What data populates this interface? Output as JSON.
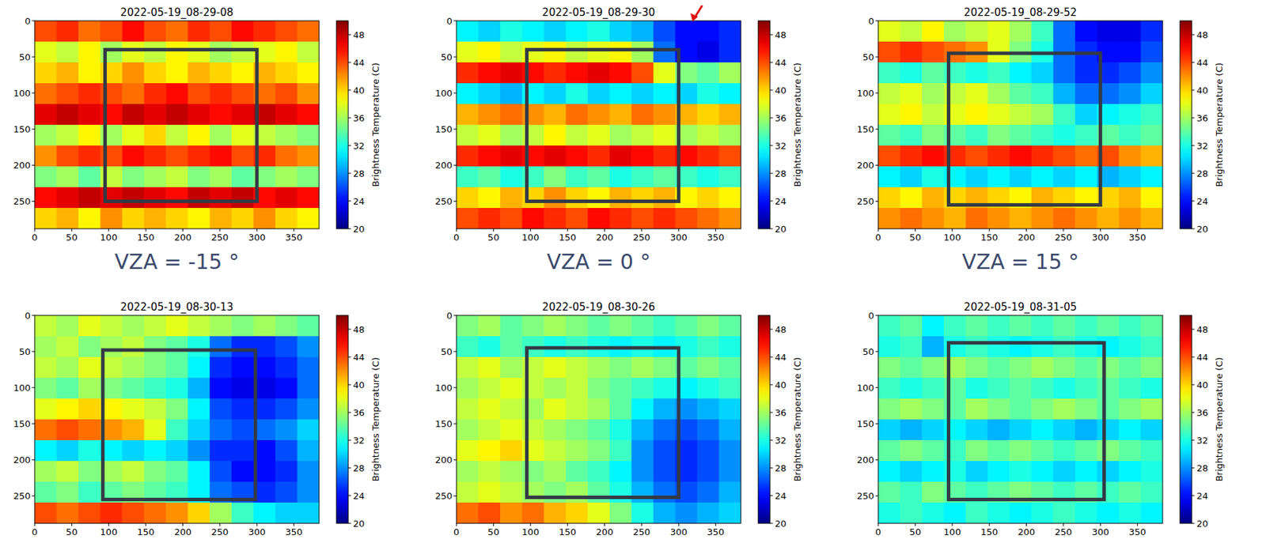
{
  "chart_data": [
    {
      "type": "heatmap",
      "title": "2022-05-19_08-29-08",
      "annotation": "VZA = -15 °",
      "xlim": [
        0,
        384
      ],
      "ylim": [
        288,
        0
      ],
      "xticks": [
        0,
        50,
        100,
        150,
        200,
        250,
        300,
        350
      ],
      "yticks": [
        0,
        50,
        100,
        150,
        200,
        250
      ],
      "roi": {
        "x": [
          95,
          300
        ],
        "y": [
          40,
          250
        ]
      },
      "colorbar": {
        "label": "Brightness Temperature (C)",
        "range": [
          20,
          50
        ],
        "ticks": [
          20,
          24,
          28,
          32,
          36,
          40,
          44,
          48
        ]
      },
      "cells": [
        [
          44,
          45,
          43,
          44,
          46,
          44,
          43,
          45,
          44,
          46,
          45,
          44,
          43
        ],
        [
          38,
          37,
          39,
          36,
          38,
          37,
          39,
          38,
          36,
          37,
          38,
          39,
          37
        ],
        [
          40,
          41,
          39,
          40,
          42,
          40,
          39,
          41,
          40,
          39,
          41,
          40,
          39
        ],
        [
          43,
          44,
          45,
          44,
          43,
          45,
          46,
          44,
          45,
          44,
          43,
          44,
          42
        ],
        [
          47,
          48,
          47,
          46,
          48,
          47,
          48,
          47,
          46,
          47,
          48,
          47,
          46
        ],
        [
          36,
          37,
          39,
          36,
          38,
          40,
          37,
          39,
          36,
          38,
          37,
          36,
          35
        ],
        [
          42,
          44,
          45,
          44,
          46,
          45,
          44,
          45,
          46,
          44,
          45,
          43,
          42
        ],
        [
          35,
          36,
          34,
          37,
          35,
          36,
          37,
          35,
          36,
          34,
          35,
          36,
          35
        ],
        [
          46,
          47,
          48,
          47,
          48,
          47,
          46,
          48,
          47,
          48,
          46,
          47,
          46
        ],
        [
          40,
          41,
          39,
          42,
          40,
          41,
          40,
          39,
          41,
          40,
          42,
          40,
          39
        ]
      ]
    },
    {
      "type": "heatmap",
      "title": "2022-05-19_08-29-30",
      "annotation": "VZA = 0 °",
      "xlim": [
        0,
        384
      ],
      "ylim": [
        288,
        0
      ],
      "xticks": [
        0,
        50,
        100,
        150,
        200,
        250,
        300,
        350
      ],
      "yticks": [
        0,
        50,
        100,
        150,
        200,
        250
      ],
      "roi": {
        "x": [
          95,
          300
        ],
        "y": [
          40,
          250
        ]
      },
      "colorbar": {
        "label": "Brightness Temperature (C)",
        "range": [
          20,
          50
        ],
        "ticks": [
          20,
          24,
          28,
          32,
          36,
          40,
          44,
          48
        ]
      },
      "cells": [
        [
          31,
          30,
          32,
          31,
          30,
          31,
          32,
          30,
          29,
          26,
          24,
          24,
          25
        ],
        [
          38,
          39,
          37,
          38,
          39,
          37,
          38,
          39,
          36,
          27,
          24,
          23,
          25
        ],
        [
          45,
          46,
          47,
          46,
          45,
          46,
          47,
          46,
          44,
          38,
          35,
          34,
          36
        ],
        [
          31,
          30,
          29,
          31,
          30,
          32,
          30,
          31,
          30,
          31,
          30,
          32,
          31
        ],
        [
          41,
          42,
          43,
          42,
          41,
          43,
          42,
          41,
          43,
          42,
          41,
          40,
          41
        ],
        [
          37,
          38,
          36,
          37,
          39,
          37,
          38,
          36,
          37,
          38,
          36,
          37,
          36
        ],
        [
          45,
          46,
          47,
          46,
          47,
          46,
          45,
          47,
          46,
          45,
          46,
          45,
          44
        ],
        [
          33,
          34,
          32,
          33,
          35,
          33,
          34,
          32,
          33,
          34,
          33,
          32,
          33
        ],
        [
          40,
          39,
          41,
          40,
          42,
          40,
          39,
          41,
          40,
          41,
          39,
          40,
          39
        ],
        [
          44,
          45,
          44,
          46,
          45,
          44,
          46,
          45,
          44,
          45,
          44,
          43,
          42
        ]
      ]
    },
    {
      "type": "heatmap",
      "title": "2022-05-19_08-29-52",
      "annotation": "VZA = 15 °",
      "xlim": [
        0,
        384
      ],
      "ylim": [
        288,
        0
      ],
      "xticks": [
        0,
        50,
        100,
        150,
        200,
        250,
        300,
        350
      ],
      "yticks": [
        0,
        50,
        100,
        150,
        200,
        250
      ],
      "roi": {
        "x": [
          95,
          300
        ],
        "y": [
          45,
          255
        ]
      },
      "colorbar": {
        "label": "Brightness Temperature (C)",
        "range": [
          20,
          50
        ],
        "ticks": [
          20,
          24,
          28,
          32,
          36,
          40,
          44,
          48
        ]
      },
      "cells": [
        [
          38,
          37,
          39,
          36,
          37,
          38,
          36,
          33,
          27,
          24,
          23,
          23,
          25
        ],
        [
          44,
          45,
          44,
          43,
          42,
          38,
          35,
          32,
          27,
          25,
          24,
          24,
          26
        ],
        [
          33,
          32,
          34,
          33,
          32,
          33,
          31,
          30,
          27,
          25,
          25,
          26,
          28
        ],
        [
          37,
          38,
          36,
          37,
          38,
          36,
          34,
          33,
          29,
          27,
          27,
          28,
          30
        ],
        [
          38,
          39,
          37,
          38,
          39,
          38,
          37,
          36,
          33,
          30,
          31,
          32,
          33
        ],
        [
          34,
          33,
          35,
          34,
          33,
          35,
          34,
          33,
          32,
          33,
          34,
          33,
          34
        ],
        [
          44,
          45,
          46,
          45,
          44,
          45,
          46,
          45,
          44,
          43,
          44,
          42,
          41
        ],
        [
          31,
          30,
          32,
          31,
          30,
          31,
          30,
          31,
          30,
          31,
          29,
          30,
          31
        ],
        [
          40,
          39,
          41,
          40,
          41,
          40,
          39,
          41,
          40,
          39,
          40,
          41,
          39
        ],
        [
          42,
          43,
          42,
          41,
          43,
          42,
          41,
          42,
          43,
          42,
          41,
          42,
          41
        ]
      ]
    },
    {
      "type": "heatmap",
      "title": "2022-05-19_08-30-13",
      "xlim": [
        0,
        384
      ],
      "ylim": [
        288,
        0
      ],
      "xticks": [
        0,
        50,
        100,
        150,
        200,
        250,
        300,
        350
      ],
      "yticks": [
        0,
        50,
        100,
        150,
        200,
        250
      ],
      "roi": {
        "x": [
          92,
          298
        ],
        "y": [
          48,
          255
        ]
      },
      "colorbar": {
        "label": "Brightness Temperature (C)",
        "range": [
          20,
          50
        ],
        "ticks": [
          20,
          24,
          28,
          32,
          36,
          40,
          44,
          48
        ]
      },
      "cells": [
        [
          37,
          36,
          38,
          37,
          36,
          37,
          38,
          37,
          36,
          35,
          36,
          35,
          34
        ],
        [
          36,
          37,
          35,
          36,
          37,
          35,
          34,
          32,
          27,
          25,
          25,
          26,
          28
        ],
        [
          37,
          36,
          38,
          37,
          36,
          35,
          34,
          31,
          25,
          24,
          24,
          25,
          27
        ],
        [
          35,
          34,
          36,
          35,
          34,
          33,
          32,
          29,
          24,
          23,
          23,
          24,
          27
        ],
        [
          38,
          39,
          40,
          39,
          38,
          37,
          35,
          31,
          26,
          25,
          25,
          26,
          28
        ],
        [
          43,
          44,
          43,
          42,
          41,
          38,
          33,
          30,
          27,
          26,
          27,
          28,
          30
        ],
        [
          31,
          30,
          32,
          31,
          30,
          31,
          30,
          28,
          25,
          25,
          24,
          26,
          29
        ],
        [
          36,
          37,
          35,
          36,
          37,
          35,
          34,
          31,
          26,
          24,
          24,
          25,
          28
        ],
        [
          34,
          35,
          33,
          34,
          35,
          34,
          33,
          31,
          27,
          26,
          25,
          26,
          28
        ],
        [
          44,
          43,
          44,
          45,
          44,
          43,
          42,
          40,
          36,
          33,
          31,
          30,
          30
        ]
      ]
    },
    {
      "type": "heatmap",
      "title": "2022-05-19_08-30-26",
      "xlim": [
        0,
        384
      ],
      "ylim": [
        288,
        0
      ],
      "xticks": [
        0,
        50,
        100,
        150,
        200,
        250,
        300,
        350
      ],
      "yticks": [
        0,
        50,
        100,
        150,
        200,
        250
      ],
      "roi": {
        "x": [
          95,
          300
        ],
        "y": [
          45,
          252
        ]
      },
      "colorbar": {
        "label": "Brightness Temperature (C)",
        "range": [
          20,
          50
        ],
        "ticks": [
          20,
          24,
          28,
          32,
          36,
          40,
          44,
          48
        ]
      },
      "cells": [
        [
          35,
          36,
          34,
          35,
          36,
          35,
          34,
          35,
          34,
          33,
          34,
          35,
          34
        ],
        [
          33,
          32,
          34,
          33,
          32,
          33,
          32,
          31,
          32,
          31,
          32,
          33,
          32
        ],
        [
          37,
          38,
          36,
          37,
          38,
          37,
          36,
          35,
          36,
          35,
          34,
          35,
          34
        ],
        [
          36,
          37,
          38,
          37,
          36,
          37,
          35,
          34,
          33,
          32,
          31,
          32,
          33
        ],
        [
          37,
          38,
          37,
          36,
          38,
          37,
          36,
          34,
          31,
          29,
          28,
          29,
          30
        ],
        [
          36,
          37,
          38,
          37,
          36,
          35,
          34,
          32,
          29,
          27,
          26,
          27,
          29
        ],
        [
          38,
          39,
          40,
          38,
          37,
          36,
          35,
          33,
          28,
          26,
          25,
          26,
          28
        ],
        [
          36,
          37,
          36,
          35,
          36,
          34,
          33,
          31,
          28,
          26,
          25,
          26,
          28
        ],
        [
          37,
          38,
          37,
          36,
          35,
          36,
          34,
          32,
          29,
          27,
          26,
          27,
          29
        ],
        [
          43,
          44,
          42,
          43,
          41,
          40,
          38,
          35,
          32,
          29,
          28,
          29,
          30
        ]
      ]
    },
    {
      "type": "heatmap",
      "title": "2022-05-19_08-31-05",
      "xlim": [
        0,
        384
      ],
      "ylim": [
        288,
        0
      ],
      "xticks": [
        0,
        50,
        100,
        150,
        200,
        250,
        300,
        350
      ],
      "yticks": [
        0,
        50,
        100,
        150,
        200,
        250
      ],
      "roi": {
        "x": [
          95,
          305
        ],
        "y": [
          38,
          255
        ]
      },
      "colorbar": {
        "label": "Brightness Temperature (C)",
        "range": [
          20,
          50
        ],
        "ticks": [
          20,
          24,
          28,
          32,
          36,
          40,
          44,
          48
        ]
      },
      "cells": [
        [
          33,
          34,
          31,
          33,
          34,
          33,
          34,
          33,
          34,
          33,
          34,
          33,
          34
        ],
        [
          32,
          33,
          29,
          32,
          33,
          32,
          31,
          32,
          33,
          32,
          31,
          32,
          33
        ],
        [
          35,
          34,
          35,
          36,
          35,
          34,
          35,
          36,
          35,
          34,
          35,
          34,
          35
        ],
        [
          33,
          32,
          33,
          34,
          32,
          33,
          34,
          33,
          32,
          33,
          34,
          33,
          32
        ],
        [
          35,
          36,
          35,
          34,
          36,
          35,
          34,
          35,
          36,
          35,
          34,
          35,
          36
        ],
        [
          30,
          29,
          30,
          31,
          30,
          29,
          30,
          31,
          30,
          29,
          30,
          31,
          30
        ],
        [
          34,
          35,
          34,
          33,
          35,
          34,
          35,
          34,
          33,
          34,
          35,
          34,
          33
        ],
        [
          31,
          30,
          31,
          32,
          30,
          31,
          32,
          31,
          30,
          31,
          30,
          31,
          32
        ],
        [
          34,
          33,
          35,
          34,
          33,
          34,
          35,
          34,
          33,
          34,
          33,
          34,
          33
        ],
        [
          32,
          33,
          32,
          31,
          33,
          32,
          31,
          32,
          33,
          32,
          31,
          32,
          31
        ]
      ]
    }
  ]
}
